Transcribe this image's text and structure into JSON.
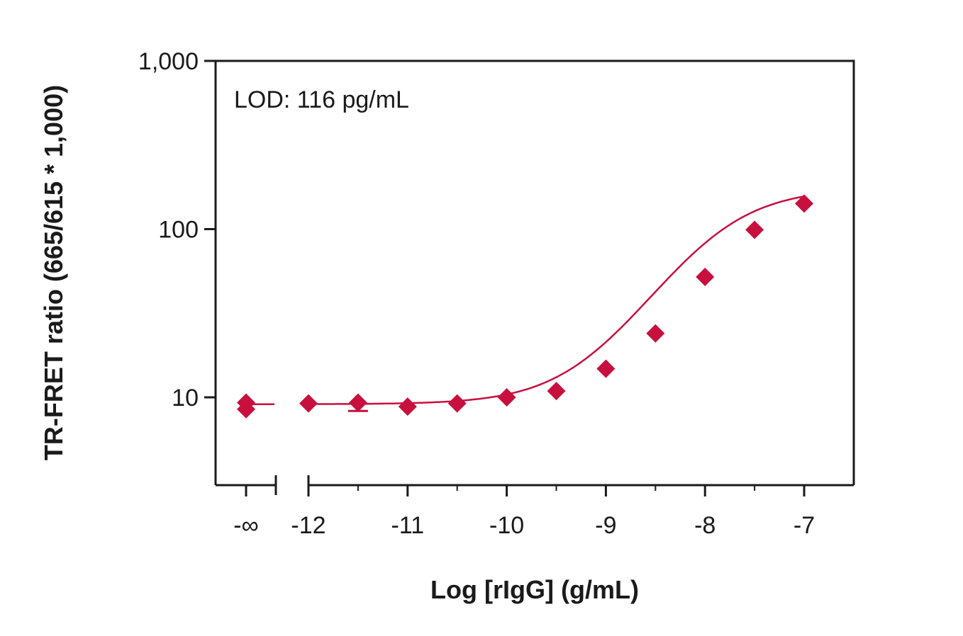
{
  "chart_data": {
    "type": "scatter",
    "title": "",
    "xlabel": "Log [rIgG] (g/mL)",
    "ylabel": "TR-FRET ratio (665/615 * 1,000)",
    "annotation": "LOD: 116 pg/mL",
    "y_scale": "log",
    "ylim": [
      3,
      1000
    ],
    "xlim": [
      -12.95,
      -6.5
    ],
    "x_broken_axis": true,
    "x_ticks": [
      {
        "x": "-∞",
        "label": "-∞"
      },
      {
        "x": -12,
        "label": "-12"
      },
      {
        "x": -11,
        "label": "-11"
      },
      {
        "x": -10,
        "label": "-10"
      },
      {
        "x": -9,
        "label": "-9"
      },
      {
        "x": -8,
        "label": "-8"
      },
      {
        "x": -7,
        "label": "-7"
      }
    ],
    "y_ticks": [
      {
        "y": 10,
        "label": "10"
      },
      {
        "y": 100,
        "label": "100"
      },
      {
        "y": 1000,
        "label": "1,000"
      }
    ],
    "series": [
      {
        "color": "#c8103e",
        "marker": "diamond",
        "points": [
          {
            "x": "-∞",
            "y": 9.3
          },
          {
            "x": "-∞",
            "y": 8.5
          },
          {
            "x": -12,
            "y": 9.2
          },
          {
            "x": -11.5,
            "y": 9.3,
            "err_low": 8.3
          },
          {
            "x": -11,
            "y": 8.8
          },
          {
            "x": -10.5,
            "y": 9.2
          },
          {
            "x": -10,
            "y": 10.0
          },
          {
            "x": -9.5,
            "y": 10.9
          },
          {
            "x": -9,
            "y": 14.8
          },
          {
            "x": -8.5,
            "y": 24.0
          },
          {
            "x": -8,
            "y": 52.0
          },
          {
            "x": -7.5,
            "y": 99.0
          },
          {
            "x": -7,
            "y": 142.0
          }
        ],
        "fit_curve": {
          "kind": "4PL",
          "bottom": 9.1,
          "top": 175,
          "log_ec50": -7.9,
          "hill": 1.0
        }
      }
    ],
    "grid": false,
    "legend": "none"
  }
}
